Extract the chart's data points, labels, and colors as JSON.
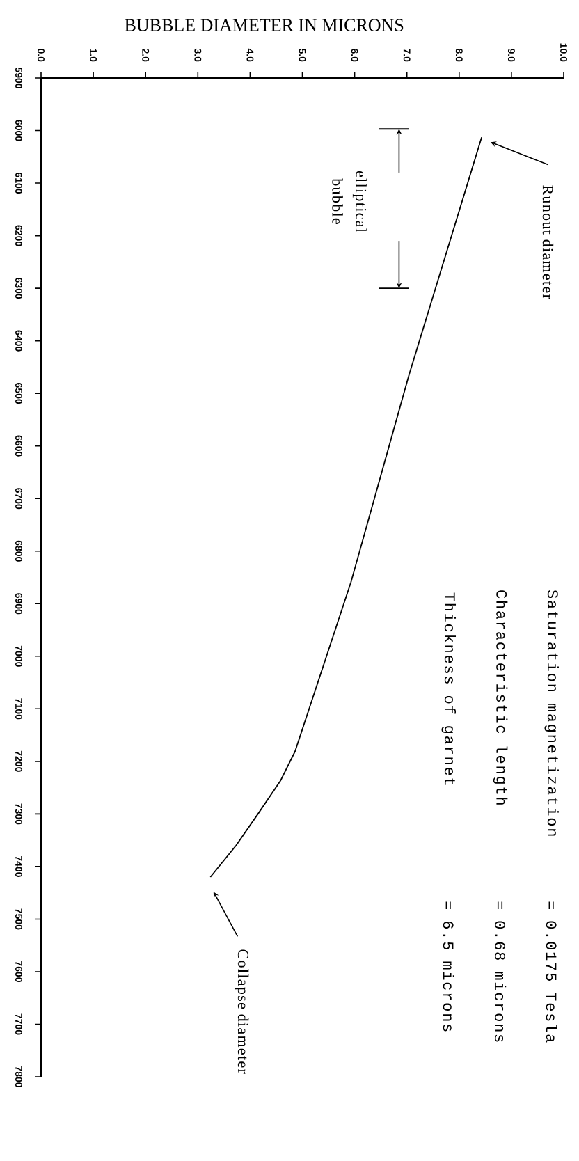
{
  "chart_data": {
    "type": "line",
    "xlabel": "BUBBLE DIAMETER IN MICRONS",
    "x": [
      8.43,
      7.04,
      5.93,
      4.86,
      4.58,
      4.15,
      3.73,
      3.24
    ],
    "values": [
      6013,
      6465,
      6859,
      7181,
      7237,
      7300,
      7360,
      7420
    ],
    "color": "#000000",
    "marker": "none",
    "line_style": "solid",
    "xlim": [
      0,
      10
    ],
    "xticks": [
      {
        "value": 0,
        "label": "0.0"
      },
      {
        "value": 1,
        "label": "1.0"
      },
      {
        "value": 2,
        "label": "2.0"
      },
      {
        "value": 3,
        "label": "3.0"
      },
      {
        "value": 4,
        "label": "4.0"
      },
      {
        "value": 5,
        "label": "5.0"
      },
      {
        "value": 6,
        "label": "6.0"
      },
      {
        "value": 7,
        "label": "7.0"
      },
      {
        "value": 8,
        "label": "8.0"
      },
      {
        "value": 9,
        "label": "9.0"
      },
      {
        "value": 10,
        "label": "10.0"
      }
    ],
    "ylim": [
      7800,
      5900
    ],
    "yticks": [
      5900,
      6000,
      6100,
      6200,
      6300,
      6400,
      6500,
      6600,
      6700,
      6800,
      6900,
      7000,
      7100,
      7200,
      7300,
      7400,
      7500,
      7600,
      7700,
      7800
    ],
    "annotations": [
      "Runout diameter",
      "elliptical bubble",
      "Saturation magnetization",
      "= 0.0175 Tesla",
      "Characteristic length",
      "= 0.68 microns",
      "Thickness of garnet",
      "= 6.5 microns",
      "Collapse diameter"
    ]
  }
}
